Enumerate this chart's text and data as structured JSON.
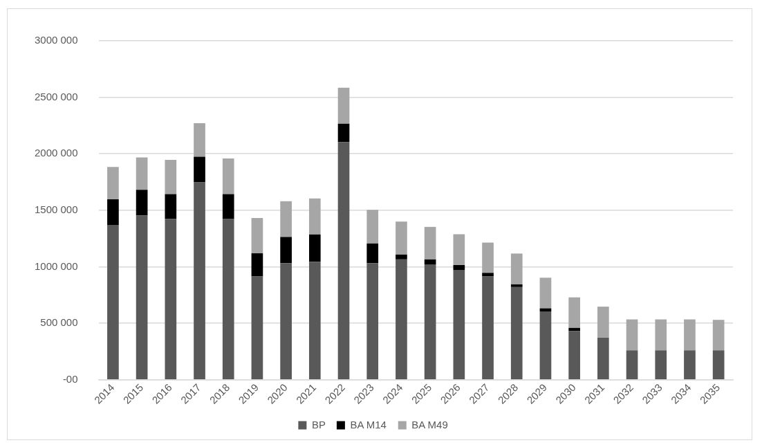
{
  "chart_data": {
    "type": "bar",
    "stacked": true,
    "categories": [
      "2014",
      "2015",
      "2016",
      "2017",
      "2018",
      "2019",
      "2020",
      "2021",
      "2022",
      "2023",
      "2024",
      "2025",
      "2026",
      "2027",
      "2028",
      "2029",
      "2030",
      "2031",
      "2032",
      "2033",
      "2034",
      "2035"
    ],
    "series": [
      {
        "name": "BP",
        "color": "#595959",
        "values": [
          1370000,
          1455000,
          1422000,
          1747000,
          1422000,
          914000,
          1032000,
          1043000,
          2104000,
          1032000,
          1065000,
          1021000,
          972000,
          914000,
          820000,
          604000,
          431000,
          372000,
          260000,
          260000,
          260000,
          260000
        ]
      },
      {
        "name": "BA M14",
        "color": "#000000",
        "values": [
          227000,
          227000,
          221000,
          227000,
          221000,
          205000,
          232000,
          243000,
          162000,
          174000,
          43000,
          44000,
          43000,
          32000,
          24000,
          28000,
          28000,
          0,
          0,
          0,
          0,
          0
        ]
      },
      {
        "name": "BA M49",
        "color": "#a6a6a6",
        "values": [
          286000,
          286000,
          303000,
          297000,
          316000,
          312000,
          316000,
          318000,
          319000,
          298000,
          292000,
          288000,
          273000,
          268000,
          273000,
          271000,
          270000,
          275000,
          274000,
          274000,
          274000,
          270000
        ]
      }
    ],
    "ylim": [
      0,
      3000000
    ],
    "yticks": [
      {
        "value": 0,
        "label": "-00"
      },
      {
        "value": 500000,
        "label": "500 000"
      },
      {
        "value": 1000000,
        "label": "1000 000"
      },
      {
        "value": 1500000,
        "label": "1500 000"
      },
      {
        "value": 2000000,
        "label": "2000 000"
      },
      {
        "value": 2500000,
        "label": "2500 000"
      },
      {
        "value": 3000000,
        "label": "3000 000"
      }
    ],
    "grid": "y",
    "legend": "bottom"
  }
}
